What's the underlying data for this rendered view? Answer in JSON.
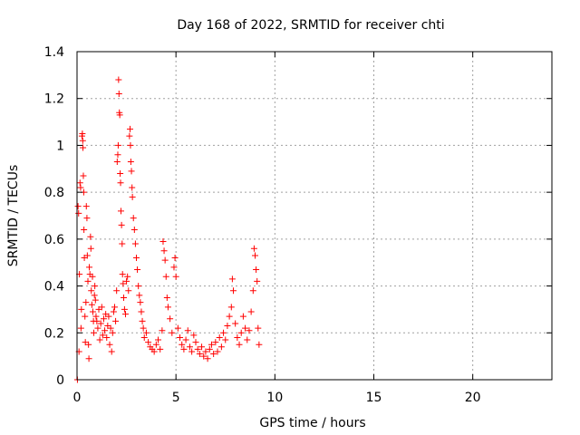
{
  "chart_data": {
    "type": "scatter",
    "title": "Day 168 of 2022, SRMTID for receiver chti",
    "xlabel": "GPS time / hours",
    "ylabel": "SRMTID / TECUs",
    "xlim": [
      0,
      24
    ],
    "ylim": [
      0,
      1.4
    ],
    "xticks": [
      0,
      5,
      10,
      15,
      20
    ],
    "yticks": [
      0,
      0.2,
      0.4,
      0.6,
      0.8,
      1,
      1.2,
      1.4
    ],
    "grid": true,
    "marker": "+",
    "color": "#ff0000",
    "series": [
      {
        "name": "SRMTID",
        "points": [
          [
            0.02,
            0.0
          ],
          [
            0.05,
            0.74
          ],
          [
            0.08,
            0.71
          ],
          [
            0.1,
            0.12
          ],
          [
            0.12,
            0.45
          ],
          [
            0.15,
            0.84
          ],
          [
            0.18,
            0.82
          ],
          [
            0.2,
            0.22
          ],
          [
            0.22,
            0.3
          ],
          [
            0.25,
            1.04
          ],
          [
            0.27,
            1.05
          ],
          [
            0.29,
            1.02
          ],
          [
            0.3,
            0.99
          ],
          [
            0.32,
            0.87
          ],
          [
            0.34,
            0.8
          ],
          [
            0.35,
            0.64
          ],
          [
            0.37,
            0.52
          ],
          [
            0.4,
            0.27
          ],
          [
            0.42,
            0.16
          ],
          [
            0.45,
            0.33
          ],
          [
            0.47,
            0.74
          ],
          [
            0.5,
            0.69
          ],
          [
            0.52,
            0.53
          ],
          [
            0.55,
            0.42
          ],
          [
            0.58,
            0.15
          ],
          [
            0.6,
            0.09
          ],
          [
            0.62,
            0.48
          ],
          [
            0.65,
            0.45
          ],
          [
            0.68,
            0.61
          ],
          [
            0.7,
            0.56
          ],
          [
            0.72,
            0.38
          ],
          [
            0.75,
            0.32
          ],
          [
            0.78,
            0.44
          ],
          [
            0.8,
            0.29
          ],
          [
            0.83,
            0.25
          ],
          [
            0.85,
            0.2
          ],
          [
            0.88,
            0.36
          ],
          [
            0.9,
            0.4
          ],
          [
            0.93,
            0.34
          ],
          [
            0.96,
            0.27
          ],
          [
            1.0,
            0.25
          ],
          [
            1.05,
            0.22
          ],
          [
            1.1,
            0.3
          ],
          [
            1.15,
            0.17
          ],
          [
            1.2,
            0.24
          ],
          [
            1.25,
            0.31
          ],
          [
            1.3,
            0.19
          ],
          [
            1.35,
            0.26
          ],
          [
            1.4,
            0.21
          ],
          [
            1.45,
            0.28
          ],
          [
            1.5,
            0.18
          ],
          [
            1.55,
            0.23
          ],
          [
            1.6,
            0.27
          ],
          [
            1.65,
            0.15
          ],
          [
            1.7,
            0.22
          ],
          [
            1.75,
            0.12
          ],
          [
            1.8,
            0.2
          ],
          [
            1.85,
            0.29
          ],
          [
            1.9,
            0.31
          ],
          [
            1.95,
            0.25
          ],
          [
            2.0,
            0.38
          ],
          [
            2.03,
            0.93
          ],
          [
            2.06,
            0.96
          ],
          [
            2.08,
            1.0
          ],
          [
            2.1,
            1.28
          ],
          [
            2.12,
            1.22
          ],
          [
            2.14,
            1.14
          ],
          [
            2.16,
            1.13
          ],
          [
            2.18,
            0.88
          ],
          [
            2.2,
            0.84
          ],
          [
            2.22,
            0.72
          ],
          [
            2.25,
            0.66
          ],
          [
            2.28,
            0.58
          ],
          [
            2.3,
            0.45
          ],
          [
            2.33,
            0.41
          ],
          [
            2.36,
            0.35
          ],
          [
            2.4,
            0.3
          ],
          [
            2.45,
            0.28
          ],
          [
            2.5,
            0.42
          ],
          [
            2.55,
            0.44
          ],
          [
            2.6,
            0.38
          ],
          [
            2.65,
            1.04
          ],
          [
            2.68,
            1.07
          ],
          [
            2.7,
            1.0
          ],
          [
            2.72,
            0.93
          ],
          [
            2.75,
            0.89
          ],
          [
            2.78,
            0.82
          ],
          [
            2.8,
            0.78
          ],
          [
            2.85,
            0.69
          ],
          [
            2.9,
            0.64
          ],
          [
            2.95,
            0.58
          ],
          [
            3.0,
            0.52
          ],
          [
            3.05,
            0.47
          ],
          [
            3.1,
            0.4
          ],
          [
            3.15,
            0.36
          ],
          [
            3.2,
            0.33
          ],
          [
            3.25,
            0.29
          ],
          [
            3.3,
            0.25
          ],
          [
            3.35,
            0.22
          ],
          [
            3.4,
            0.18
          ],
          [
            3.5,
            0.2
          ],
          [
            3.6,
            0.16
          ],
          [
            3.7,
            0.14
          ],
          [
            3.8,
            0.13
          ],
          [
            3.9,
            0.12
          ],
          [
            4.0,
            0.15
          ],
          [
            4.1,
            0.17
          ],
          [
            4.2,
            0.13
          ],
          [
            4.3,
            0.21
          ],
          [
            4.35,
            0.59
          ],
          [
            4.4,
            0.55
          ],
          [
            4.45,
            0.51
          ],
          [
            4.5,
            0.44
          ],
          [
            4.55,
            0.35
          ],
          [
            4.6,
            0.31
          ],
          [
            4.7,
            0.26
          ],
          [
            4.8,
            0.2
          ],
          [
            4.9,
            0.48
          ],
          [
            4.95,
            0.52
          ],
          [
            5.0,
            0.44
          ],
          [
            5.1,
            0.22
          ],
          [
            5.2,
            0.18
          ],
          [
            5.3,
            0.15
          ],
          [
            5.4,
            0.13
          ],
          [
            5.5,
            0.17
          ],
          [
            5.6,
            0.21
          ],
          [
            5.7,
            0.14
          ],
          [
            5.8,
            0.12
          ],
          [
            5.9,
            0.19
          ],
          [
            6.0,
            0.16
          ],
          [
            6.1,
            0.13
          ],
          [
            6.2,
            0.11
          ],
          [
            6.3,
            0.14
          ],
          [
            6.4,
            0.1
          ],
          [
            6.5,
            0.12
          ],
          [
            6.6,
            0.09
          ],
          [
            6.7,
            0.13
          ],
          [
            6.8,
            0.15
          ],
          [
            6.9,
            0.11
          ],
          [
            7.0,
            0.16
          ],
          [
            7.1,
            0.12
          ],
          [
            7.2,
            0.18
          ],
          [
            7.3,
            0.14
          ],
          [
            7.4,
            0.2
          ],
          [
            7.5,
            0.17
          ],
          [
            7.6,
            0.23
          ],
          [
            7.7,
            0.27
          ],
          [
            7.8,
            0.31
          ],
          [
            7.85,
            0.43
          ],
          [
            7.9,
            0.38
          ],
          [
            8.0,
            0.24
          ],
          [
            8.1,
            0.18
          ],
          [
            8.2,
            0.15
          ],
          [
            8.3,
            0.2
          ],
          [
            8.4,
            0.27
          ],
          [
            8.5,
            0.22
          ],
          [
            8.6,
            0.17
          ],
          [
            8.7,
            0.21
          ],
          [
            8.8,
            0.29
          ],
          [
            8.9,
            0.38
          ],
          [
            8.95,
            0.56
          ],
          [
            9.0,
            0.53
          ],
          [
            9.05,
            0.47
          ],
          [
            9.1,
            0.42
          ],
          [
            9.15,
            0.22
          ],
          [
            9.2,
            0.15
          ]
        ]
      }
    ]
  }
}
